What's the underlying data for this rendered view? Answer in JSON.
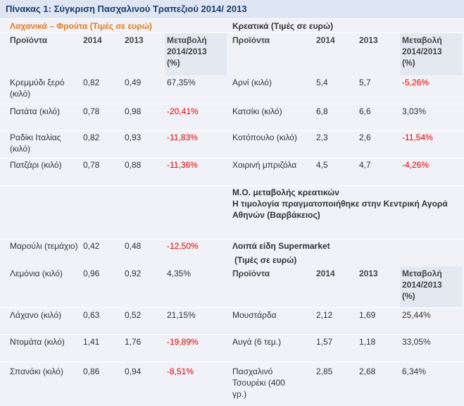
{
  "caption": "Πίνακας 1: Σύγκριση Πασχαλινού Τραπεζιού 2014/ 2013",
  "left_section_title": "Λαχανικά – Φρούτα  (Τιμές σε ευρώ)",
  "right_section_title": "Κρεατικά (Τιμές σε ευρώ)",
  "headers": {
    "product": "Προϊόντα",
    "y2014": "2014",
    "y2013": "2013",
    "change_l1": "Μεταβολή",
    "change_l2": "2014/2013",
    "change_l3": "(%)"
  },
  "veg_rows": [
    {
      "name": "Κρεμμύδι ξερό (κιλό)",
      "v2014": "0,82",
      "v2013": "0,49",
      "change": "67,35%",
      "negative": false
    },
    {
      "name": "Πατάτα (κιλό)",
      "v2014": "0,78",
      "v2013": "0,98",
      "change": "-20,41%",
      "negative": true
    },
    {
      "name": "Ραδίκι  Ιταλίας (κιλό)",
      "v2014": "0,82",
      "v2013": "0,93",
      "change": "-11,83%",
      "negative": true
    },
    {
      "name": "Πατζάρι (κιλό)",
      "v2014": "0,78",
      "v2013": "0,88",
      "change": "-11,36%",
      "negative": true
    },
    {
      "name": "Μαρούλι (τεμάχιο)",
      "v2014": "0,42",
      "v2013": "0,48",
      "change": "-12,50%",
      "negative": true
    },
    {
      "name": "Λεμόνια (κιλό)",
      "v2014": "0,96",
      "v2013": "0,92",
      "change": "4,35%",
      "negative": false
    },
    {
      "name": "Λάχανο  (κιλό)",
      "v2014": "0,63",
      "v2013": "0,52",
      "change": "21,15%",
      "negative": false
    },
    {
      "name": "Ντομάτα (κιλό)",
      "v2014": "1,41",
      "v2013": "1,76",
      "change": "-19,89%",
      "negative": true
    },
    {
      "name": "Σπανάκι (κιλό)",
      "v2014": "0,86",
      "v2013": "0,94",
      "change": "-8,51%",
      "negative": true
    }
  ],
  "meat_rows": [
    {
      "name": "Αρνί  (κιλό)",
      "v2014": "5,4",
      "v2013": "5,7",
      "change": "-5,26%",
      "negative": true
    },
    {
      "name": "Κατσίκι (κιλό)",
      "v2014": "6,8",
      "v2013": "6,6",
      "change": "3,03%",
      "negative": false
    },
    {
      "name": "Κοτόπουλο (κιλό)",
      "v2014": "2,3",
      "v2013": "2,6",
      "change": "-11,54%",
      "negative": true
    },
    {
      "name": "Χοιρινή μπριζόλα",
      "v2014": "4,5",
      "v2013": "4,7",
      "change": "-4,26%",
      "negative": true
    }
  ],
  "meat_note": "Μ.Ο. μεταβολής κρεατικών\nΗ τιμολογία πραγματοποιήθηκε στην Κεντρική Αγορά Αθηνών (Βαρβάκειος)",
  "supermarket_title": "Λοιπά είδη Supermarket",
  "supermarket_subtitle": "(Τιμές σε ευρώ)",
  "super_rows": [
    {
      "name": "Μουστάρδα",
      "v2014": "2,12",
      "v2013": "1,69",
      "change": "25,44%",
      "negative": false
    },
    {
      "name": "Αυγά (6 τεμ.)",
      "v2014": "1,57",
      "v2013": "1,18",
      "change": "33,05%",
      "negative": false
    },
    {
      "name": "Πασχαλινό Τσουρέκι (400 γρ.)",
      "v2014": "2,85",
      "v2013": "2,68",
      "change": "6,34%",
      "negative": false
    }
  ]
}
